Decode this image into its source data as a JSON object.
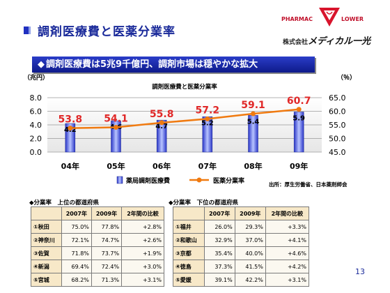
{
  "header": {
    "title": "調剤医療費と医薬分業率",
    "headline": "調剤医療費は5兆9千億円、調剤市場は穏やかな拡大",
    "headline_bullet": "◆"
  },
  "logo": {
    "brand_left": "PHARMAC",
    "brand_right": "LOWER",
    "company_prefix": "株式会社",
    "company_name": "メディカル一光"
  },
  "chart_data": {
    "type": "bar",
    "title": "調剤医療費と医薬分業率",
    "categories": [
      "04年",
      "05年",
      "06年",
      "07年",
      "08年",
      "09年"
    ],
    "left_axis_unit": "（兆円）",
    "right_axis_unit": "（％）",
    "left_ticks": [
      "8.0",
      "6.0",
      "4.0",
      "2.0",
      "0.0"
    ],
    "right_ticks": [
      "65.0",
      "60.0",
      "55.0",
      "50.0",
      "45.0"
    ],
    "ylim_left": [
      0,
      8
    ],
    "ylim_right": [
      45,
      65
    ],
    "series": [
      {
        "name": "薬局調剤医療費",
        "type": "bar",
        "axis": "left",
        "values": [
          4.2,
          4.6,
          4.7,
          5.2,
          5.4,
          5.9
        ],
        "labels": [
          "4.2",
          "4.6",
          "4.7",
          "5.2",
          "5.4",
          "5.9"
        ]
      },
      {
        "name": "医薬分業率",
        "type": "line",
        "axis": "right",
        "values": [
          53.8,
          54.1,
          55.8,
          57.2,
          59.1,
          60.7
        ],
        "labels": [
          "53.8",
          "54.1",
          "55.8",
          "57.2",
          "59.1",
          "60.7"
        ]
      }
    ],
    "grid": true,
    "legend": "bottom",
    "source": "出所：厚生労働省、日本薬剤師会",
    "colors": {
      "bar": "#2a36c8",
      "bar_light": "#b8c4ff",
      "line": "#f07a10",
      "label": "#e02828"
    }
  },
  "table_top": {
    "title": "◆分業率　上位の都道府県",
    "headers": [
      "",
      "2007年",
      "2009年",
      "2年間の比較"
    ],
    "rows": [
      [
        "①秋田",
        "75.0%",
        "77.8%",
        "+2.8%"
      ],
      [
        "②神奈川",
        "72.1%",
        "74.7%",
        "+2.6%"
      ],
      [
        "③佐賀",
        "71.8%",
        "73.7%",
        "+1.9%"
      ],
      [
        "④新潟",
        "69.4%",
        "72.4%",
        "+3.0%"
      ],
      [
        "⑤宮城",
        "68.2%",
        "71.3%",
        "+3.1%"
      ]
    ]
  },
  "table_bottom": {
    "title": "◆分業率　下位の都道府県",
    "headers": [
      "",
      "2007年",
      "2009年",
      "2年間の比較"
    ],
    "rows": [
      [
        "①福井",
        "26.0%",
        "29.3%",
        "+3.3%"
      ],
      [
        "②和歌山",
        "32.9%",
        "37.0%",
        "+4.1%"
      ],
      [
        "③京都",
        "35.4%",
        "40.0%",
        "+4.6%"
      ],
      [
        "④徳島",
        "37.3%",
        "41.5%",
        "+4.2%"
      ],
      [
        "⑤愛媛",
        "39.1%",
        "42.2%",
        "+3.1%"
      ]
    ]
  },
  "page_number": "13"
}
